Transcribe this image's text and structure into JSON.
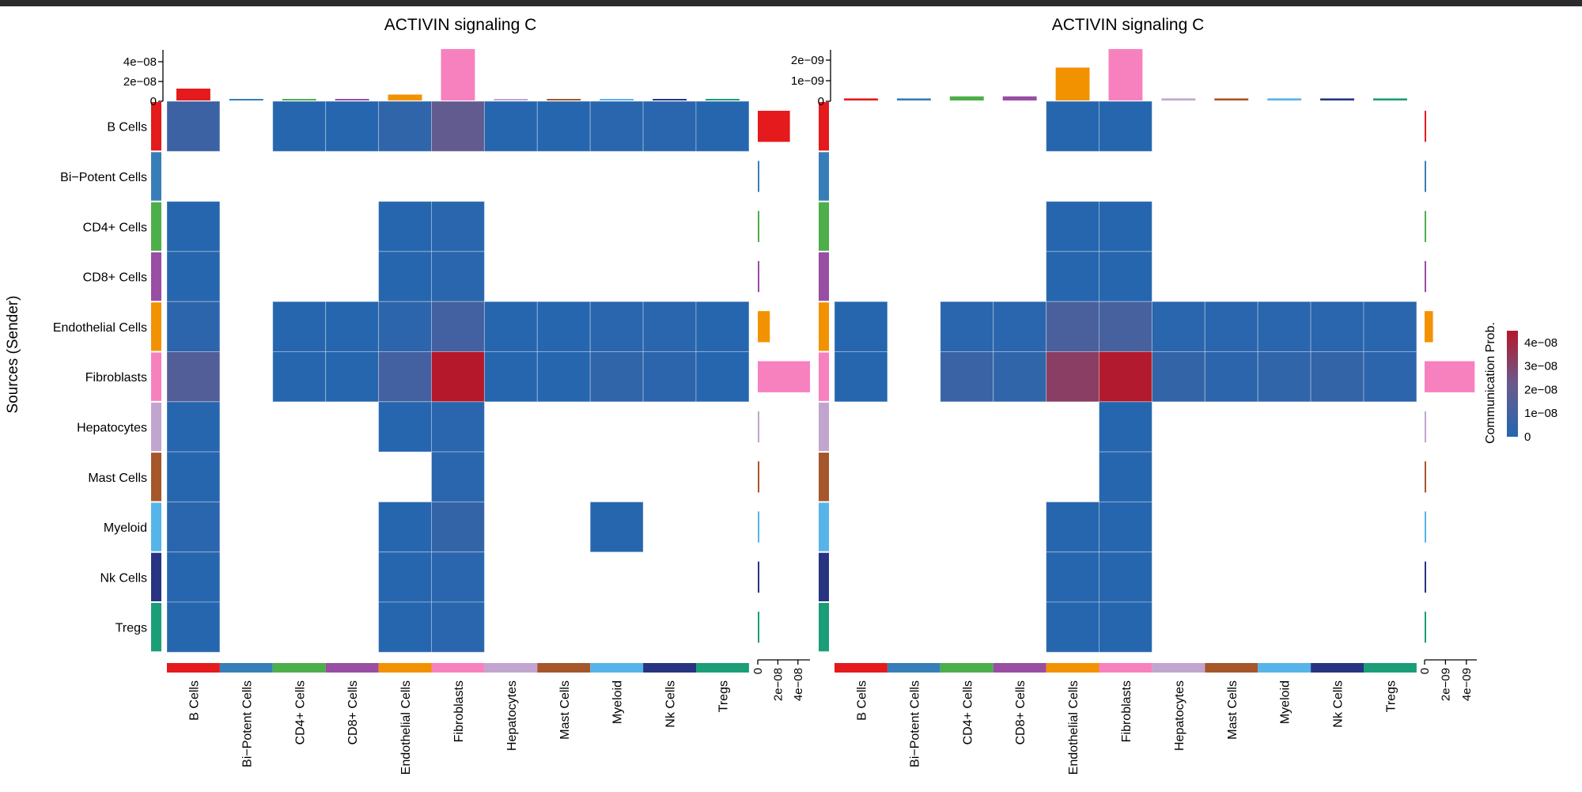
{
  "figure": {
    "y_axis_label": "Sources (Sender)",
    "legend_title": "Communication Prob.",
    "legend_ticks": [
      "4e−08",
      "3e−08",
      "2e−08",
      "1e−08",
      "0"
    ],
    "color_scale": {
      "low": "#2367b0",
      "mid": "#6a5a8c",
      "high": "#b5172b",
      "max": 4.5e-08
    }
  },
  "cell_types": [
    "B Cells",
    "Bi−Potent Cells",
    "CD4+ Cells",
    "CD8+ Cells",
    "Endothelial Cells",
    "Fibroblasts",
    "Hepatocytes",
    "Mast Cells",
    "Myeloid",
    "Nk Cells",
    "Tregs"
  ],
  "cell_colors": [
    "#e41a1c",
    "#377eb8",
    "#4daf4a",
    "#984ea3",
    "#f39200",
    "#f781bf",
    "#c2a5cf",
    "#a6562b",
    "#56b4e9",
    "#283482",
    "#1b9e77"
  ],
  "chart_data": [
    {
      "type": "heatmap",
      "title": "ACTIVIN signaling  C",
      "ylabel": "Sources (Sender)",
      "rows": [
        "B Cells",
        "Bi−Potent Cells",
        "CD4+ Cells",
        "CD8+ Cells",
        "Endothelial Cells",
        "Fibroblasts",
        "Hepatocytes",
        "Mast Cells",
        "Myeloid",
        "Nk Cells",
        "Tregs"
      ],
      "columns": [
        "B Cells",
        "Bi−Potent Cells",
        "CD4+ Cells",
        "CD8+ Cells",
        "Endothelial Cells",
        "Fibroblasts",
        "Hepatocytes",
        "Mast Cells",
        "Myeloid",
        "Nk Cells",
        "Tregs"
      ],
      "values": [
        [
          8e-09,
          null,
          1e-09,
          1e-09,
          4e-09,
          2e-08,
          1e-09,
          1e-09,
          2e-09,
          2e-09,
          1e-09
        ],
        [
          null,
          null,
          null,
          null,
          null,
          null,
          null,
          null,
          null,
          null,
          null
        ],
        [
          1e-09,
          null,
          null,
          null,
          1e-09,
          2e-09,
          null,
          null,
          null,
          null,
          null
        ],
        [
          1e-09,
          null,
          null,
          null,
          1e-09,
          2e-09,
          null,
          null,
          null,
          null,
          null
        ],
        [
          3e-09,
          null,
          1e-09,
          1e-09,
          3e-09,
          1e-08,
          1e-09,
          1e-09,
          2e-09,
          2e-09,
          1e-09
        ],
        [
          1.5e-08,
          null,
          1e-09,
          1e-09,
          1e-08,
          4.5e-08,
          1e-09,
          1e-09,
          4e-09,
          3e-09,
          1e-09
        ],
        [
          1e-09,
          null,
          null,
          null,
          1e-09,
          2e-09,
          null,
          null,
          null,
          null,
          null
        ],
        [
          1e-09,
          null,
          null,
          null,
          null,
          2e-09,
          null,
          null,
          null,
          null,
          null
        ],
        [
          2e-09,
          null,
          null,
          null,
          1e-09,
          5e-09,
          null,
          null,
          1e-09,
          null,
          null
        ],
        [
          1e-09,
          null,
          null,
          null,
          1e-09,
          2e-09,
          null,
          null,
          null,
          null,
          null
        ],
        [
          1e-09,
          null,
          null,
          null,
          1e-09,
          2e-09,
          null,
          null,
          null,
          null,
          null
        ]
      ],
      "top_bar": {
        "values": [
          1.2e-08,
          5e-10,
          1e-09,
          1e-09,
          6e-09,
          5.2e-08,
          5e-10,
          1e-09,
          1.5e-09,
          1.2e-09,
          1e-09
        ],
        "max": 5.2e-08,
        "ticks": [
          "4e−08",
          "2e−08",
          "0"
        ],
        "tick_values": [
          4e-08,
          2e-08,
          0
        ]
      },
      "right_bar": {
        "values": [
          3.2e-08,
          5e-10,
          5e-10,
          5e-10,
          1.2e-08,
          5.2e-08,
          5e-10,
          5e-10,
          5e-10,
          5e-10,
          5e-10
        ],
        "max": 5.2e-08,
        "ticks": [
          "0",
          "2e−08",
          "4e−08"
        ],
        "tick_values": [
          0,
          2e-08,
          4e-08
        ]
      }
    },
    {
      "type": "heatmap",
      "title": "ACTIVIN signaling  C",
      "rows": [
        "B Cells",
        "Bi−Potent Cells",
        "CD4+ Cells",
        "CD8+ Cells",
        "Endothelial Cells",
        "Fibroblasts",
        "Hepatocytes",
        "Mast Cells",
        "Myeloid",
        "Nk Cells",
        "Tregs"
      ],
      "columns": [
        "B Cells",
        "Bi−Potent Cells",
        "CD4+ Cells",
        "CD8+ Cells",
        "Endothelial Cells",
        "Fibroblasts",
        "Hepatocytes",
        "Mast Cells",
        "Myeloid",
        "Nk Cells",
        "Tregs"
      ],
      "values": [
        [
          null,
          null,
          null,
          null,
          1e-09,
          1e-09,
          null,
          null,
          null,
          null,
          null
        ],
        [
          null,
          null,
          null,
          null,
          null,
          null,
          null,
          null,
          null,
          null,
          null
        ],
        [
          null,
          null,
          null,
          null,
          1e-09,
          1e-09,
          null,
          null,
          null,
          null,
          null
        ],
        [
          null,
          null,
          null,
          null,
          1e-09,
          1e-09,
          null,
          null,
          null,
          null,
          null
        ],
        [
          1e-09,
          null,
          2e-09,
          2e-09,
          1.2e-08,
          1.1e-08,
          2e-09,
          2e-09,
          2e-09,
          2e-09,
          2e-09
        ],
        [
          1e-09,
          null,
          7e-09,
          4e-09,
          3.2e-08,
          4.4e-08,
          5e-09,
          3e-09,
          4e-09,
          5e-09,
          3e-09
        ],
        [
          null,
          null,
          null,
          null,
          null,
          1e-09,
          null,
          null,
          null,
          null,
          null
        ],
        [
          null,
          null,
          null,
          null,
          null,
          1e-09,
          null,
          null,
          null,
          null,
          null
        ],
        [
          null,
          null,
          null,
          null,
          1e-09,
          1e-09,
          null,
          null,
          null,
          null,
          null
        ],
        [
          null,
          null,
          null,
          null,
          1e-09,
          1e-09,
          null,
          null,
          null,
          null,
          null
        ],
        [
          null,
          null,
          null,
          null,
          1e-09,
          1e-09,
          null,
          null,
          null,
          null,
          null
        ]
      ],
      "top_bar": {
        "values": [
          1e-10,
          1e-10,
          2e-10,
          2e-10,
          1.6e-09,
          2.5e-09,
          1e-10,
          1e-10,
          1e-10,
          1e-10,
          1e-10
        ],
        "max": 2.5e-09,
        "ticks": [
          "2e−09",
          "1e−09",
          "0"
        ],
        "tick_values": [
          2e-09,
          1e-09,
          0
        ]
      },
      "right_bar": {
        "values": [
          2e-11,
          1e-11,
          1e-11,
          1e-11,
          8e-10,
          4.8e-09,
          1e-11,
          1e-11,
          1e-11,
          1e-11,
          1e-11
        ],
        "max": 5e-09,
        "ticks": [
          "0",
          "2e−09",
          "4e−09"
        ],
        "tick_values": [
          0,
          2e-09,
          4e-09
        ]
      }
    }
  ]
}
